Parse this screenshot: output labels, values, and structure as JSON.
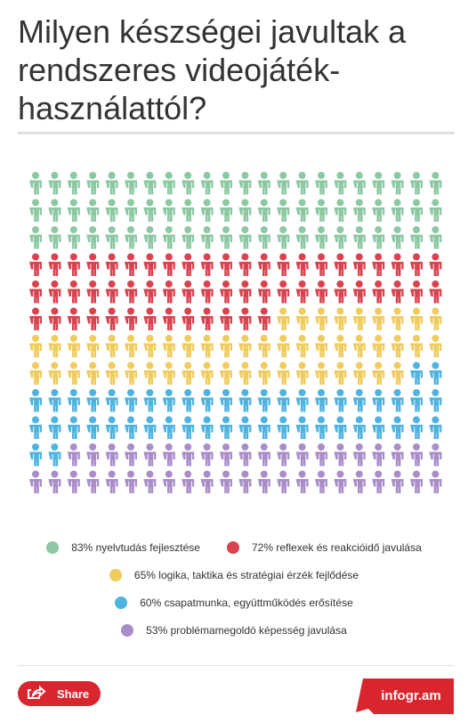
{
  "chart_data": {
    "type": "pictogram",
    "title": "Milyen készségei javultak a rendszeres videojáték-használattól?",
    "categories": [
      "nyelvtudás fejlesztése",
      "reflexek és reakcióidő javulása",
      "logika, taktika és stratégiai érzék fejlődése",
      "csapatmunka, együttműködés erősítése",
      "problémamegoldó képesség javulása"
    ],
    "values": [
      83,
      72,
      65,
      60,
      53
    ],
    "value_labels": [
      "83%",
      "72%",
      "65%",
      "60%",
      "53%"
    ],
    "colors": [
      "#8cc8a2",
      "#d8434f",
      "#f0cb5d",
      "#4fb3e0",
      "#a98dc9"
    ]
  },
  "footer": {
    "share": "Share",
    "brand": "infogr.am"
  }
}
